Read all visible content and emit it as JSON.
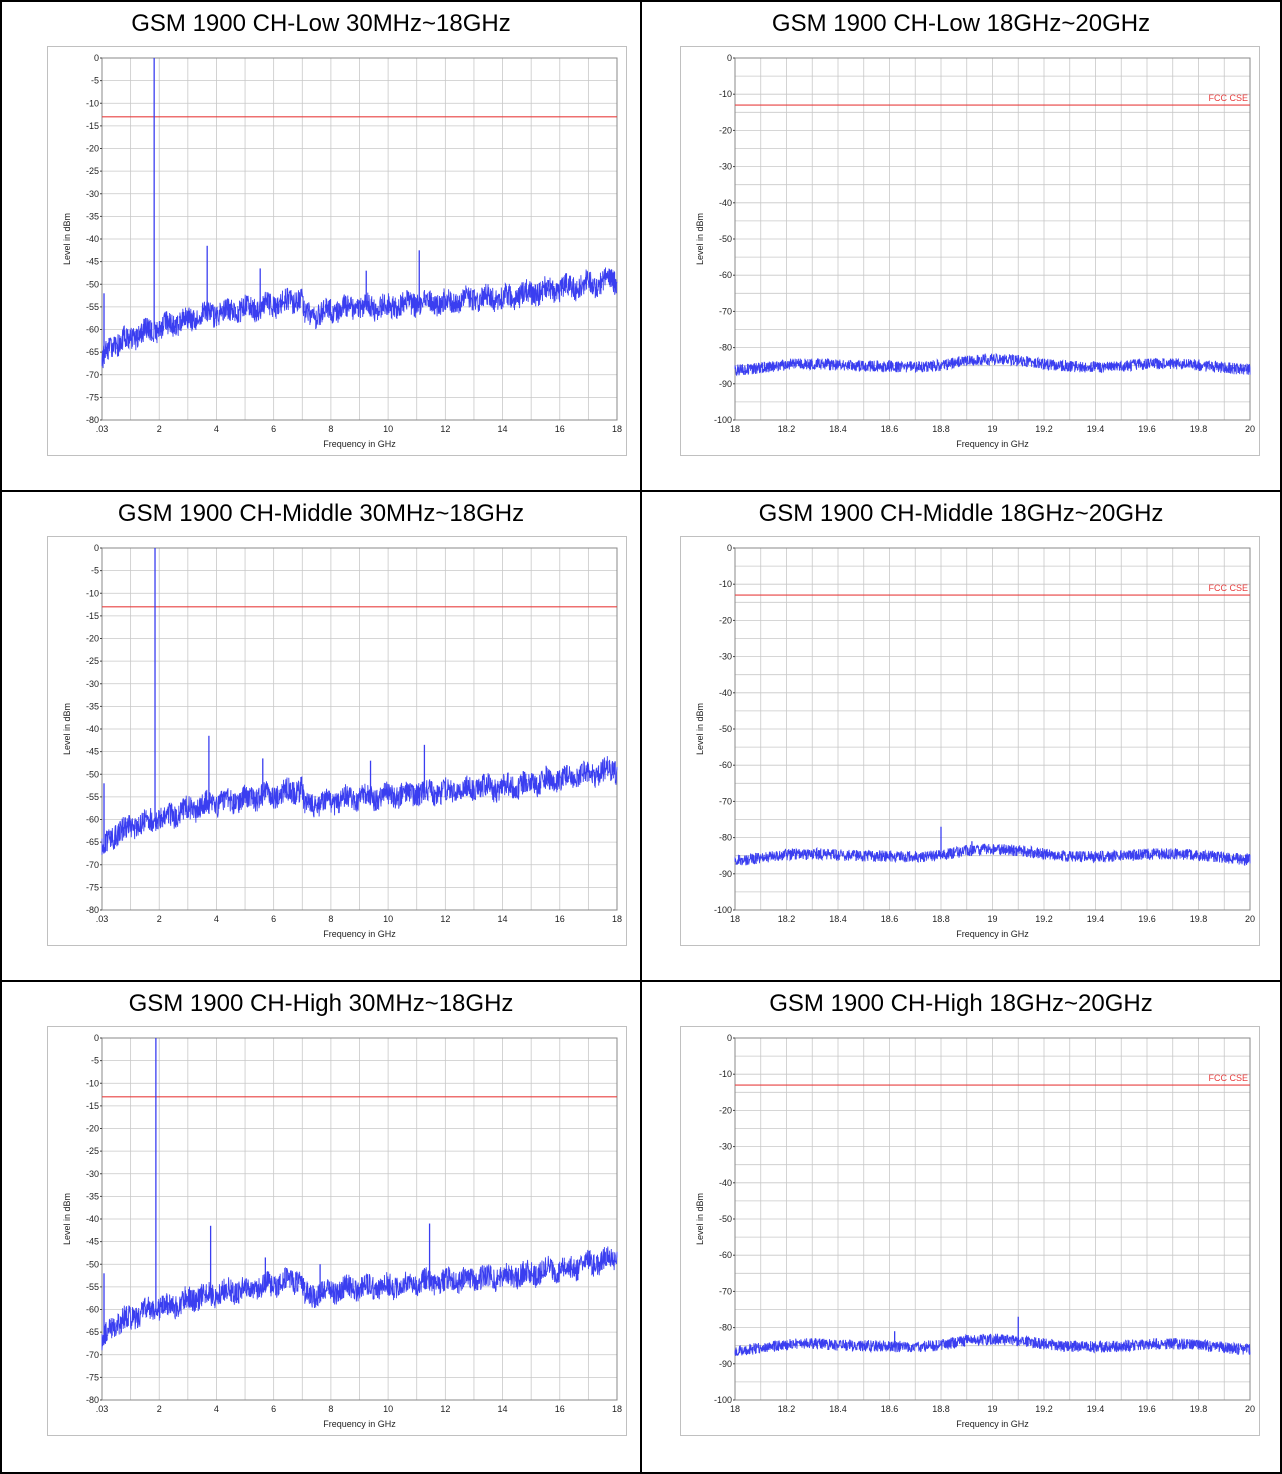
{
  "colors": {
    "trace": "#3a3ef0",
    "limit": "#e84040",
    "grid": "#c8c8c8",
    "frame": "#8a8a8a"
  },
  "chart_data": [
    {
      "type": "line",
      "title": "GSM 1900 CH-Low 30MHz~18GHz",
      "xlabel": "Frequency in GHz",
      "ylabel": "Level in dBm",
      "xlim": [
        0.03,
        18
      ],
      "ylim": [
        -80,
        0
      ],
      "x_ticks": [
        ".03",
        "2",
        "4",
        "6",
        "8",
        "10",
        "12",
        "14",
        "16",
        "18"
      ],
      "y_ticks": [
        "0",
        "-5",
        "-10",
        "-15",
        "-20",
        "-25",
        "-30",
        "-35",
        "-40",
        "-45",
        "-50",
        "-55",
        "-60",
        "-65",
        "-70",
        "-75",
        "-80"
      ],
      "limit": {
        "value": -13,
        "label": ""
      },
      "noise": {
        "x": [
          0.03,
          0.5,
          1.0,
          1.8,
          2.5,
          3.5,
          4.5,
          5.5,
          6.5,
          7.0,
          7.1,
          8,
          9,
          10,
          11,
          12,
          13,
          14,
          15,
          16,
          17,
          18
        ],
        "y": [
          -67,
          -63,
          -62,
          -60,
          -59,
          -57,
          -56,
          -55,
          -54,
          -53,
          -57,
          -56,
          -55,
          -55,
          -54,
          -54,
          -53,
          -53,
          -52,
          -51,
          -50,
          -49
        ]
      },
      "spikes": [
        {
          "x": 1.85,
          "y": 0
        },
        {
          "x": 3.7,
          "y": -41.5
        },
        {
          "x": 5.55,
          "y": -46.5
        },
        {
          "x": 9.25,
          "y": -47
        },
        {
          "x": 11.1,
          "y": -42.5
        },
        {
          "x": 0.1,
          "y": -52
        }
      ]
    },
    {
      "type": "line",
      "title": "GSM 1900 CH-Low 18GHz~20GHz",
      "xlabel": "Frequency in GHz",
      "ylabel": "Level in dBm",
      "xlim": [
        18,
        20
      ],
      "ylim": [
        -100,
        0
      ],
      "x_ticks": [
        "18",
        "18.2",
        "18.4",
        "18.6",
        "18.8",
        "19",
        "19.2",
        "19.4",
        "19.6",
        "19.8",
        "20"
      ],
      "y_ticks": [
        "0",
        "-10",
        "-20",
        "-30",
        "-40",
        "-50",
        "-60",
        "-70",
        "-80",
        "-90",
        "-100"
      ],
      "limit": {
        "value": -13,
        "label": "FCC CSE"
      },
      "noise": {
        "x": [
          18,
          18.2,
          18.4,
          18.6,
          18.8,
          18.9,
          19,
          19.2,
          19.4,
          19.6,
          19.8,
          20
        ],
        "y": [
          -85.5,
          -85,
          -85.5,
          -84.5,
          -84.5,
          -84,
          -84,
          -84.5,
          -84.5,
          -85,
          -85.5,
          -85.5
        ]
      },
      "spikes": []
    },
    {
      "type": "line",
      "title": "GSM 1900 CH-Middle 30MHz~18GHz",
      "xlabel": "Frequency in GHz",
      "ylabel": "Level in dBm",
      "xlim": [
        0.03,
        18
      ],
      "ylim": [
        -80,
        0
      ],
      "x_ticks": [
        ".03",
        "2",
        "4",
        "6",
        "8",
        "10",
        "12",
        "14",
        "16",
        "18"
      ],
      "y_ticks": [
        "0",
        "-5",
        "-10",
        "-15",
        "-20",
        "-25",
        "-30",
        "-35",
        "-40",
        "-45",
        "-50",
        "-55",
        "-60",
        "-65",
        "-70",
        "-75",
        "-80"
      ],
      "limit": {
        "value": -13,
        "label": ""
      },
      "noise": {
        "x": [
          0.03,
          0.5,
          1.0,
          1.8,
          2.5,
          3.5,
          4.5,
          5.5,
          6.5,
          7.0,
          7.1,
          8,
          9,
          10,
          11,
          12,
          13,
          14,
          15,
          16,
          17,
          18
        ],
        "y": [
          -67,
          -63,
          -62,
          -60,
          -59,
          -57,
          -56,
          -55,
          -54,
          -53,
          -57,
          -56,
          -55,
          -55,
          -54,
          -54,
          -53,
          -53,
          -52,
          -51,
          -50,
          -49
        ]
      },
      "spikes": [
        {
          "x": 1.88,
          "y": 0
        },
        {
          "x": 3.76,
          "y": -41.5
        },
        {
          "x": 5.64,
          "y": -46.5
        },
        {
          "x": 9.4,
          "y": -47
        },
        {
          "x": 11.28,
          "y": -43.5
        },
        {
          "x": 0.1,
          "y": -52
        }
      ]
    },
    {
      "type": "line",
      "title": "GSM 1900 CH-Middle 18GHz~20GHz",
      "xlabel": "Frequency in GHz",
      "ylabel": "Level in dBm",
      "xlim": [
        18,
        20
      ],
      "ylim": [
        -100,
        0
      ],
      "x_ticks": [
        "18",
        "18.2",
        "18.4",
        "18.6",
        "18.8",
        "19",
        "19.2",
        "19.4",
        "19.6",
        "19.8",
        "20"
      ],
      "y_ticks": [
        "0",
        "-10",
        "-20",
        "-30",
        "-40",
        "-50",
        "-60",
        "-70",
        "-80",
        "-90",
        "-100"
      ],
      "limit": {
        "value": -13,
        "label": "FCC CSE"
      },
      "noise": {
        "x": [
          18,
          18.2,
          18.4,
          18.6,
          18.8,
          18.9,
          19,
          19.2,
          19.4,
          19.6,
          19.8,
          20
        ],
        "y": [
          -85.5,
          -85,
          -85.5,
          -84.5,
          -84.5,
          -84,
          -84,
          -84.5,
          -84.5,
          -85,
          -85.5,
          -85.5
        ]
      },
      "spikes": [
        {
          "x": 18.8,
          "y": -77
        },
        {
          "x": 18.92,
          "y": -81
        }
      ]
    },
    {
      "type": "line",
      "title": "GSM 1900 CH-High 30MHz~18GHz",
      "xlabel": "Frequency in GHz",
      "ylabel": "Level in dBm",
      "xlim": [
        0.03,
        18
      ],
      "ylim": [
        -80,
        0
      ],
      "x_ticks": [
        ".03",
        "2",
        "4",
        "6",
        "8",
        "10",
        "12",
        "14",
        "16",
        "18"
      ],
      "y_ticks": [
        "0",
        "-5",
        "-10",
        "-15",
        "-20",
        "-25",
        "-30",
        "-35",
        "-40",
        "-45",
        "-50",
        "-55",
        "-60",
        "-65",
        "-70",
        "-75",
        "-80"
      ],
      "limit": {
        "value": -13,
        "label": ""
      },
      "noise": {
        "x": [
          0.03,
          0.5,
          1.0,
          1.8,
          2.5,
          3.5,
          4.5,
          5.5,
          6.5,
          7.0,
          7.1,
          8,
          9,
          10,
          11,
          12,
          13,
          14,
          15,
          16,
          17,
          18
        ],
        "y": [
          -67,
          -63,
          -62,
          -60,
          -59,
          -57,
          -56,
          -55,
          -54,
          -53,
          -57,
          -56,
          -55,
          -55,
          -54,
          -54,
          -53,
          -53,
          -52,
          -51,
          -50,
          -49
        ]
      },
      "spikes": [
        {
          "x": 1.91,
          "y": 0
        },
        {
          "x": 3.82,
          "y": -41.5
        },
        {
          "x": 5.73,
          "y": -48.5
        },
        {
          "x": 7.64,
          "y": -50
        },
        {
          "x": 11.46,
          "y": -41
        },
        {
          "x": 0.1,
          "y": -52
        }
      ]
    },
    {
      "type": "line",
      "title": "GSM 1900 CH-High 18GHz~20GHz",
      "xlabel": "Frequency in GHz",
      "ylabel": "Level in dBm",
      "xlim": [
        18,
        20
      ],
      "ylim": [
        -100,
        0
      ],
      "x_ticks": [
        "18",
        "18.2",
        "18.4",
        "18.6",
        "18.8",
        "19",
        "19.2",
        "19.4",
        "19.6",
        "19.8",
        "20"
      ],
      "y_ticks": [
        "0",
        "-10",
        "-20",
        "-30",
        "-40",
        "-50",
        "-60",
        "-70",
        "-80",
        "-90",
        "-100"
      ],
      "limit": {
        "value": -13,
        "label": "FCC CSE"
      },
      "noise": {
        "x": [
          18,
          18.2,
          18.4,
          18.6,
          18.8,
          18.9,
          19,
          19.2,
          19.4,
          19.6,
          19.8,
          20
        ],
        "y": [
          -85.5,
          -85,
          -85.5,
          -84.5,
          -84.5,
          -84,
          -84,
          -84.5,
          -84.5,
          -85,
          -85.5,
          -85.5
        ]
      },
      "spikes": [
        {
          "x": 19.1,
          "y": -77
        },
        {
          "x": 18.62,
          "y": -81
        }
      ]
    }
  ]
}
